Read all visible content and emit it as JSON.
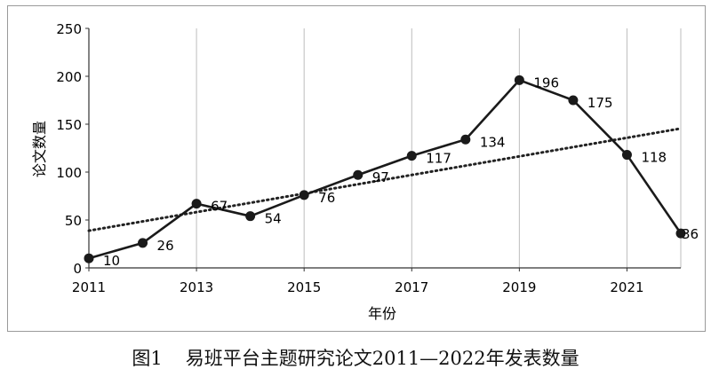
{
  "chart_data": {
    "type": "line",
    "x": [
      2011,
      2012,
      2013,
      2014,
      2015,
      2016,
      2017,
      2018,
      2019,
      2020,
      2021,
      2022
    ],
    "values": [
      10,
      26,
      67,
      54,
      76,
      97,
      117,
      134,
      196,
      175,
      118,
      36
    ],
    "data_labels": [
      "10",
      "26",
      "67",
      "54",
      "76",
      "97",
      "117",
      "134",
      "196",
      "175",
      "118",
      "36"
    ],
    "x_ticks": [
      "2011",
      "2013",
      "2015",
      "2017",
      "2019",
      "2021"
    ],
    "y_ticks": [
      "0",
      "50",
      "100",
      "150",
      "200",
      "250"
    ],
    "ylim": [
      0,
      250
    ],
    "xlabel": "年份",
    "ylabel": "论文数量",
    "trendline": "linear",
    "grid": "vertical",
    "legend": "none"
  },
  "caption": {
    "figure_number": "图1",
    "text": "易班平台主题研究论文2011—2022年发表数量"
  }
}
